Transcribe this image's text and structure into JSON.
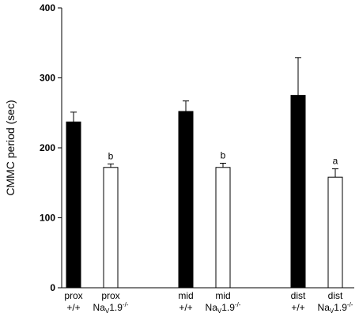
{
  "chart_data": {
    "type": "bar",
    "ylabel": "CMMC period (sec)",
    "ylim": [
      0,
      400
    ],
    "yticks": [
      0,
      100,
      200,
      300,
      400
    ],
    "grid": false,
    "legend": "none",
    "bars": [
      {
        "label_top": "prox",
        "label_bottom": "+/+",
        "superscript": "",
        "value": 237,
        "error": 14,
        "fill": "#000000",
        "sig": ""
      },
      {
        "label_top": "prox",
        "label_bottom": "Na",
        "subscript": "V",
        "bottom_rest": "1.9",
        "superscript": "-/-",
        "value": 172,
        "error": 5,
        "fill": "#ffffff",
        "sig": "b"
      },
      {
        "label_top": "mid",
        "label_bottom": "+/+",
        "superscript": "",
        "value": 252,
        "error": 15,
        "fill": "#000000",
        "sig": ""
      },
      {
        "label_top": "mid",
        "label_bottom": "Na",
        "subscript": "V",
        "bottom_rest": "1.9",
        "superscript": "-/-",
        "value": 172,
        "error": 6,
        "fill": "#ffffff",
        "sig": "b"
      },
      {
        "label_top": "dist",
        "label_bottom": "+/+",
        "superscript": "",
        "value": 275,
        "error": 54,
        "fill": "#000000",
        "sig": ""
      },
      {
        "label_top": "dist",
        "label_bottom": "Na",
        "subscript": "V",
        "bottom_rest": "1.9",
        "superscript": "-/-",
        "value": 158,
        "error": 12,
        "fill": "#ffffff",
        "sig": "a"
      }
    ]
  }
}
